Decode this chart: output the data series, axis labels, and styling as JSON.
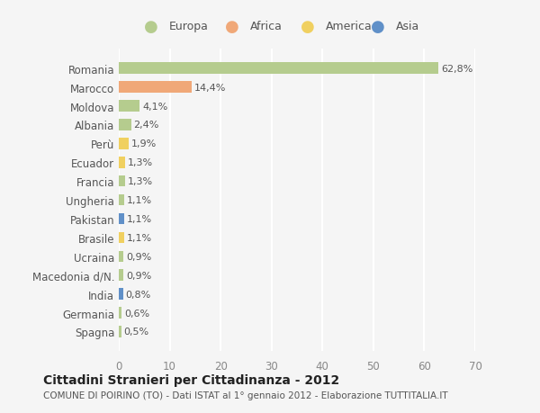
{
  "countries": [
    "Romania",
    "Marocco",
    "Moldova",
    "Albania",
    "Perù",
    "Ecuador",
    "Francia",
    "Ungheria",
    "Pakistan",
    "Brasile",
    "Ucraina",
    "Macedonia d/N.",
    "India",
    "Germania",
    "Spagna"
  ],
  "values": [
    62.8,
    14.4,
    4.1,
    2.4,
    1.9,
    1.3,
    1.3,
    1.1,
    1.1,
    1.1,
    0.9,
    0.9,
    0.8,
    0.6,
    0.5
  ],
  "labels": [
    "62,8%",
    "14,4%",
    "4,1%",
    "2,4%",
    "1,9%",
    "1,3%",
    "1,3%",
    "1,1%",
    "1,1%",
    "1,1%",
    "0,9%",
    "0,9%",
    "0,8%",
    "0,6%",
    "0,5%"
  ],
  "continents": [
    "Europa",
    "Africa",
    "Europa",
    "Europa",
    "America",
    "America",
    "Europa",
    "Europa",
    "Asia",
    "America",
    "Europa",
    "Europa",
    "Asia",
    "Europa",
    "Europa"
  ],
  "continent_colors": {
    "Europa": "#b5cc8e",
    "Africa": "#f0a878",
    "America": "#f0d060",
    "Asia": "#6090c8"
  },
  "legend_order": [
    "Europa",
    "Africa",
    "America",
    "Asia"
  ],
  "title": "Cittadini Stranieri per Cittadinanza - 2012",
  "subtitle": "COMUNE DI POIRINO (TO) - Dati ISTAT al 1° gennaio 2012 - Elaborazione TUTTITALIA.IT",
  "xlim": [
    0,
    70
  ],
  "xticks": [
    0,
    10,
    20,
    30,
    40,
    50,
    60,
    70
  ],
  "background_color": "#f5f5f5",
  "grid_color": "#ffffff"
}
